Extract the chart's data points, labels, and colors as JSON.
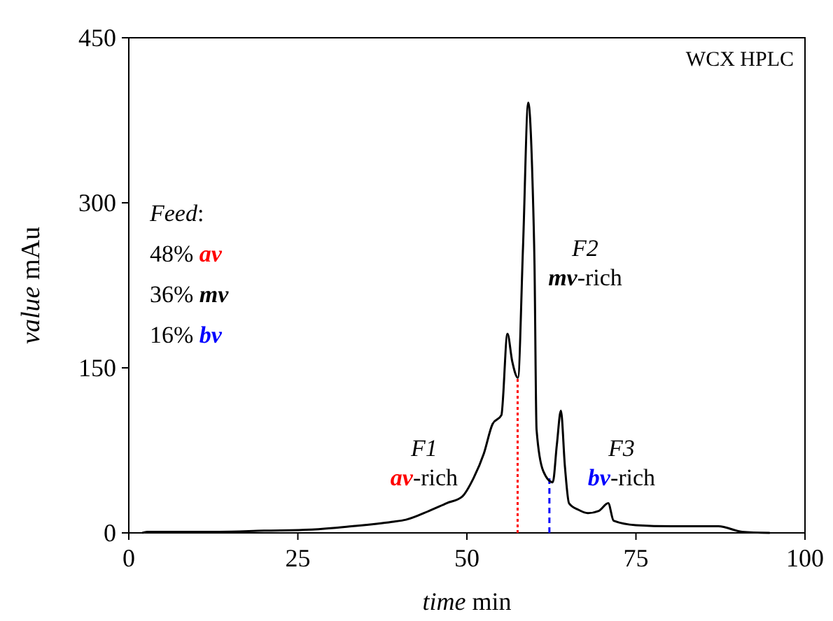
{
  "chart_data": {
    "type": "line",
    "xlabel": "time min",
    "ylabel": "value mAu",
    "xlim": [
      0,
      100
    ],
    "ylim": [
      0,
      450
    ],
    "xticks": [
      0,
      25,
      50,
      75,
      100
    ],
    "yticks": [
      0,
      150,
      300,
      450
    ],
    "line_style": "solid",
    "series": [
      {
        "color": "#000000",
        "x": [
          2,
          2.7,
          5,
          13.4,
          20,
          27.1,
          33,
          38.9,
          41,
          44.4,
          47,
          49.3,
          51,
          52.5,
          53.8,
          55.1,
          56,
          56.7,
          57.55,
          58.3,
          59.07,
          59.7,
          60,
          60.3,
          61.3,
          62.7,
          63.3,
          63.9,
          64.5,
          65.1,
          66.5,
          67.9,
          69.5,
          70.9,
          71.7,
          75,
          80.3,
          87.2,
          90.7,
          94.8
        ],
        "values": [
          0,
          1,
          1,
          1,
          2,
          3,
          6,
          10,
          12,
          20,
          27,
          33,
          50,
          72,
          99,
          107,
          181,
          156,
          141,
          260,
          391,
          320,
          243,
          94,
          56,
          46,
          80,
          111,
          60,
          27,
          21,
          18,
          20,
          27,
          11,
          7,
          6,
          6,
          1,
          0
        ]
      }
    ],
    "ref_lines": [
      {
        "axis": "x",
        "value": 57.5,
        "color": "#ff0000",
        "line_style": "dotted"
      },
      {
        "axis": "x",
        "value": 62.2,
        "color": "#0000ff",
        "line_style": "dashed"
      }
    ],
    "annotations": [
      "WCX HPLC",
      "Feed:",
      "48% av",
      "36% mv",
      "16% bv",
      "F1\nav-rich",
      "F2\nmv-rich",
      "F3\nbv-rich"
    ]
  }
}
